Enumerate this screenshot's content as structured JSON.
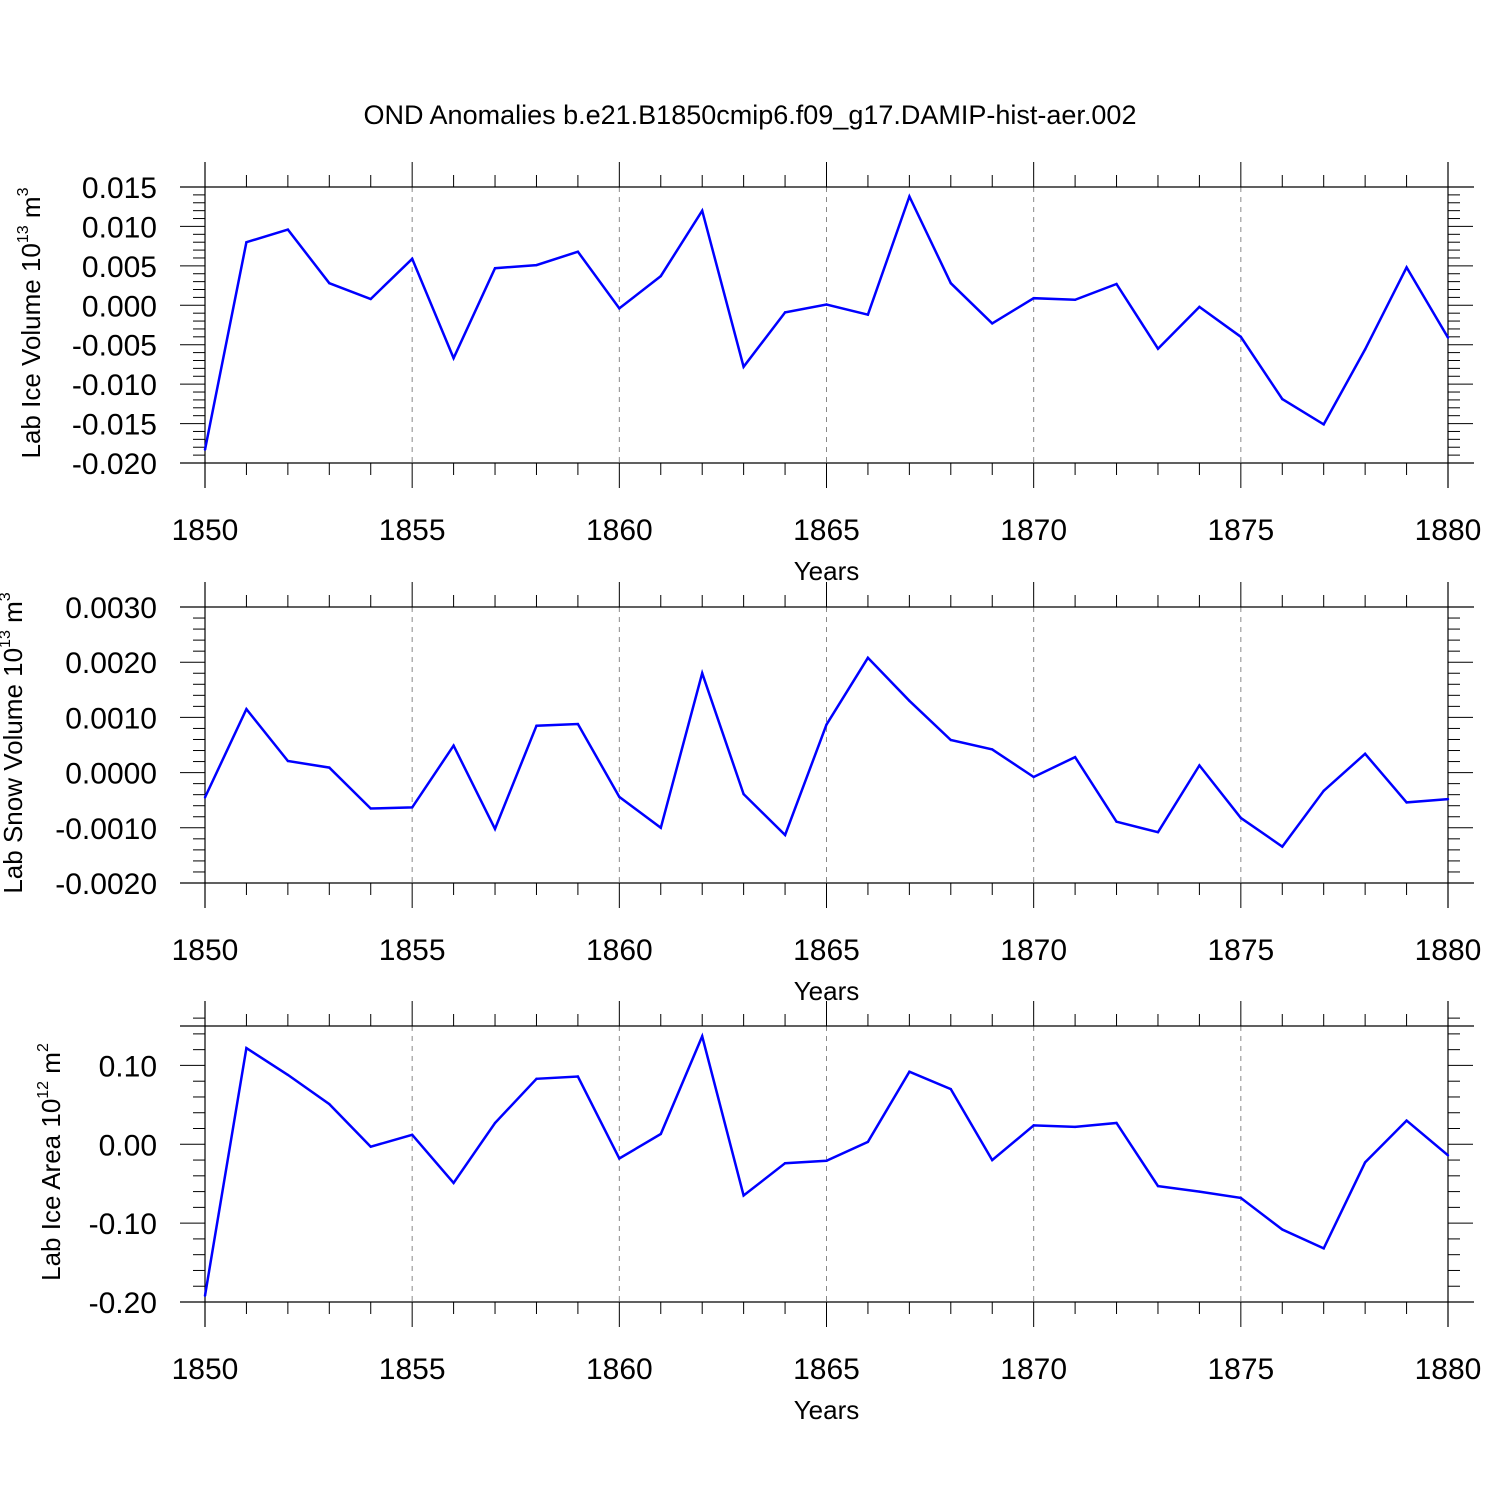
{
  "title": "OND Anomalies b.e21.B1850cmip6.f09_g17.DAMIP-hist-aer.002",
  "chart_data": [
    {
      "type": "line",
      "ylabel": "Lab Ice Volume 10",
      "ylabel_exp": "13",
      "ylabel_unit": " m",
      "ylabel_unit_exp": "3",
      "xlabel": "Years",
      "xlim": [
        1850,
        1880
      ],
      "ylim": [
        -0.02,
        0.015
      ],
      "xticks": [
        "1850",
        "1855",
        "1860",
        "1865",
        "1870",
        "1875",
        "1880"
      ],
      "yticks": [
        {
          "value": 0.015,
          "label": "0.015"
        },
        {
          "value": 0.01,
          "label": "0.010"
        },
        {
          "value": 0.005,
          "label": "0.005"
        },
        {
          "value": 0.0,
          "label": "0.000"
        },
        {
          "value": -0.005,
          "label": "-0.005"
        },
        {
          "value": -0.01,
          "label": "-0.010"
        },
        {
          "value": -0.015,
          "label": "-0.015"
        },
        {
          "value": -0.02,
          "label": "-0.020"
        }
      ],
      "grid": "dashed vertical at major x ticks",
      "color": "#0000ff",
      "x": [
        1850,
        1851,
        1852,
        1853,
        1854,
        1855,
        1856,
        1857,
        1858,
        1859,
        1860,
        1861,
        1862,
        1863,
        1864,
        1865,
        1866,
        1867,
        1868,
        1869,
        1870,
        1871,
        1872,
        1873,
        1874,
        1875,
        1876,
        1877,
        1878,
        1879,
        1880
      ],
      "y": [
        -0.0183,
        0.008,
        0.0096,
        0.0028,
        0.0008,
        0.0059,
        -0.0067,
        0.0047,
        0.0051,
        0.0068,
        -0.0004,
        0.0037,
        0.012,
        -0.0078,
        -0.0009,
        0.0001,
        -0.0012,
        0.0138,
        0.0028,
        -0.0023,
        0.0009,
        0.0007,
        0.0027,
        -0.0055,
        -0.0002,
        -0.004,
        -0.0119,
        -0.0151,
        -0.0056,
        0.0048,
        -0.0041
      ]
    },
    {
      "type": "line",
      "ylabel": "Lab Snow Volume 10",
      "ylabel_exp": "13",
      "ylabel_unit": " m",
      "ylabel_unit_exp": "3",
      "xlabel": "Years",
      "xlim": [
        1850,
        1880
      ],
      "ylim": [
        -0.002,
        0.003
      ],
      "xticks": [
        "1850",
        "1855",
        "1860",
        "1865",
        "1870",
        "1875",
        "1880"
      ],
      "yticks": [
        {
          "value": 0.003,
          "label": "0.0030"
        },
        {
          "value": 0.002,
          "label": "0.0020"
        },
        {
          "value": 0.001,
          "label": "0.0010"
        },
        {
          "value": 0.0,
          "label": "0.0000"
        },
        {
          "value": -0.001,
          "label": "-0.0010"
        },
        {
          "value": -0.002,
          "label": "-0.0020"
        }
      ],
      "grid": "dashed vertical at major x ticks",
      "color": "#0000ff",
      "x": [
        1850,
        1851,
        1852,
        1853,
        1854,
        1855,
        1856,
        1857,
        1858,
        1859,
        1860,
        1861,
        1862,
        1863,
        1864,
        1865,
        1866,
        1867,
        1868,
        1869,
        1870,
        1871,
        1872,
        1873,
        1874,
        1875,
        1876,
        1877,
        1878,
        1879,
        1880
      ],
      "y": [
        -0.00045,
        0.00115,
        0.00021,
        9e-05,
        -0.00065,
        -0.00063,
        0.00049,
        -0.00102,
        0.00085,
        0.00088,
        -0.00044,
        -0.001,
        0.0018,
        -0.00039,
        -0.00113,
        0.00087,
        0.00208,
        0.0013,
        0.00059,
        0.00042,
        -8e-05,
        0.00028,
        -0.00089,
        -0.00108,
        0.00013,
        -0.00082,
        -0.00134,
        -0.00033,
        0.00034,
        -0.00054,
        -0.00048
      ]
    },
    {
      "type": "line",
      "ylabel": "Lab Ice Area 10",
      "ylabel_exp": "12",
      "ylabel_unit": " m",
      "ylabel_unit_exp": "2",
      "xlabel": "Years",
      "xlim": [
        1850,
        1880
      ],
      "ylim": [
        -0.2,
        0.15
      ],
      "xticks": [
        "1850",
        "1855",
        "1860",
        "1865",
        "1870",
        "1875",
        "1880"
      ],
      "yticks": [
        {
          "value": 0.1,
          "label": "0.10"
        },
        {
          "value": 0.0,
          "label": "0.00"
        },
        {
          "value": -0.1,
          "label": "-0.10"
        },
        {
          "value": -0.2,
          "label": "-0.20"
        }
      ],
      "grid": "dashed vertical at major x ticks",
      "color": "#0000ff",
      "x": [
        1850,
        1851,
        1852,
        1853,
        1854,
        1855,
        1856,
        1857,
        1858,
        1859,
        1860,
        1861,
        1862,
        1863,
        1864,
        1865,
        1866,
        1867,
        1868,
        1869,
        1870,
        1871,
        1872,
        1873,
        1874,
        1875,
        1876,
        1877,
        1878,
        1879,
        1880
      ],
      "y": [
        -0.192,
        0.122,
        0.088,
        0.051,
        -0.003,
        0.012,
        -0.049,
        0.027,
        0.083,
        0.086,
        -0.018,
        0.013,
        0.137,
        -0.065,
        -0.024,
        -0.021,
        0.003,
        0.092,
        0.07,
        -0.02,
        0.024,
        0.022,
        0.027,
        -0.053,
        -0.06,
        -0.068,
        -0.108,
        -0.132,
        -0.023,
        0.03,
        -0.014
      ]
    }
  ]
}
